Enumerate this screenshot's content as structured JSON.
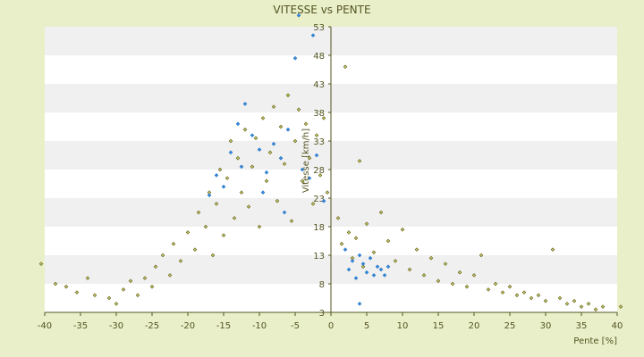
{
  "chart_data": {
    "type": "scatter",
    "title": "VITESSE vs PENTE",
    "xlabel": "Pente [%]",
    "ylabel": "Vitesse [km/h]",
    "xlim": [
      -40,
      40
    ],
    "ylim": [
      3,
      53
    ],
    "x_ticks": [
      "-40",
      "-35",
      "-30",
      "-25",
      "-20",
      "-15",
      "-10",
      "-5",
      "0",
      "5",
      "10",
      "15",
      "20",
      "25",
      "30",
      "35",
      "40"
    ],
    "y_ticks": [
      "3",
      "8",
      "13",
      "18",
      "23",
      "28",
      "33",
      "38",
      "43",
      "48",
      "53"
    ],
    "grid": "horizontal bands",
    "colors": {
      "background": "#e9efc9",
      "plot_band_light": "#ffffff",
      "plot_band_dark": "#f0f0f0",
      "marker_olive": "#c8c860",
      "marker_olive_edge": "#5a5a1a",
      "marker_blue": "#3a8fe0",
      "text": "#555522"
    },
    "series": [
      {
        "color": "#c8c860",
        "points": [
          [
            -40.5,
            11.5
          ],
          [
            -38.5,
            8.0
          ],
          [
            -37.0,
            7.5
          ],
          [
            -35.5,
            6.5
          ],
          [
            -34.0,
            9.0
          ],
          [
            -33.0,
            6.0
          ],
          [
            -31.0,
            5.5
          ],
          [
            -30.0,
            4.5
          ],
          [
            -29.0,
            7.0
          ],
          [
            -28.0,
            8.5
          ],
          [
            -27.0,
            6.0
          ],
          [
            -26.0,
            9.0
          ],
          [
            -25.0,
            7.5
          ],
          [
            -24.5,
            11.0
          ],
          [
            -23.5,
            13.0
          ],
          [
            -22.5,
            9.5
          ],
          [
            -22.0,
            15.0
          ],
          [
            -21.0,
            12.0
          ],
          [
            -20.0,
            17.0
          ],
          [
            -19.0,
            14.0
          ],
          [
            -18.5,
            20.5
          ],
          [
            -17.5,
            18.0
          ],
          [
            -17.0,
            24.0
          ],
          [
            -16.5,
            13.0
          ],
          [
            -16.0,
            22.0
          ],
          [
            -15.5,
            28.0
          ],
          [
            -15.0,
            16.5
          ],
          [
            -14.5,
            26.5
          ],
          [
            -14.0,
            33.0
          ],
          [
            -13.5,
            19.5
          ],
          [
            -13.0,
            30.0
          ],
          [
            -12.5,
            24.0
          ],
          [
            -12.0,
            35.0
          ],
          [
            -11.5,
            21.5
          ],
          [
            -11.0,
            28.5
          ],
          [
            -10.5,
            33.5
          ],
          [
            -10.0,
            18.0
          ],
          [
            -9.5,
            37.0
          ],
          [
            -9.0,
            26.0
          ],
          [
            -8.5,
            31.0
          ],
          [
            -8.0,
            39.0
          ],
          [
            -7.5,
            22.5
          ],
          [
            -7.0,
            35.5
          ],
          [
            -6.5,
            29.0
          ],
          [
            -6.0,
            41.0
          ],
          [
            -5.5,
            19.0
          ],
          [
            -5.0,
            33.0
          ],
          [
            -4.5,
            38.5
          ],
          [
            -4.0,
            26.0
          ],
          [
            -3.5,
            36.0
          ],
          [
            -3.0,
            30.0
          ],
          [
            -2.5,
            22.0
          ],
          [
            -2.0,
            34.0
          ],
          [
            -1.5,
            27.0
          ],
          [
            -1.0,
            37.0
          ],
          [
            -0.5,
            24.0
          ],
          [
            1.0,
            19.5
          ],
          [
            1.5,
            15.0
          ],
          [
            2.0,
            46.0
          ],
          [
            2.5,
            17.0
          ],
          [
            3.0,
            12.5
          ],
          [
            3.5,
            16.0
          ],
          [
            4.0,
            29.5
          ],
          [
            4.5,
            11.0
          ],
          [
            5.0,
            18.5
          ],
          [
            6.0,
            13.5
          ],
          [
            7.0,
            20.5
          ],
          [
            8.0,
            15.5
          ],
          [
            9.0,
            12.0
          ],
          [
            10.0,
            17.5
          ],
          [
            11.0,
            10.5
          ],
          [
            12.0,
            14.0
          ],
          [
            13.0,
            9.5
          ],
          [
            14.0,
            12.5
          ],
          [
            15.0,
            8.5
          ],
          [
            16.0,
            11.5
          ],
          [
            17.0,
            8.0
          ],
          [
            18.0,
            10.0
          ],
          [
            19.0,
            7.5
          ],
          [
            20.0,
            9.5
          ],
          [
            21.0,
            13.0
          ],
          [
            22.0,
            7.0
          ],
          [
            23.0,
            8.0
          ],
          [
            24.0,
            6.5
          ],
          [
            25.0,
            7.5
          ],
          [
            26.0,
            6.0
          ],
          [
            27.0,
            6.5
          ],
          [
            28.0,
            5.5
          ],
          [
            29.0,
            6.0
          ],
          [
            30.0,
            5.0
          ],
          [
            31.0,
            14.0
          ],
          [
            32.0,
            5.5
          ],
          [
            33.0,
            4.5
          ],
          [
            34.0,
            5.0
          ],
          [
            35.0,
            4.0
          ],
          [
            36.0,
            4.5
          ],
          [
            37.0,
            3.5
          ],
          [
            38.0,
            4.0
          ],
          [
            40.5,
            4.0
          ]
        ]
      },
      {
        "color": "#3a8fe0",
        "points": [
          [
            -17.0,
            23.5
          ],
          [
            -16.0,
            27.0
          ],
          [
            -15.0,
            25.0
          ],
          [
            -14.0,
            31.0
          ],
          [
            -13.0,
            36.0
          ],
          [
            -12.5,
            28.5
          ],
          [
            -12.0,
            39.5
          ],
          [
            -11.0,
            34.0
          ],
          [
            -10.0,
            31.5
          ],
          [
            -9.5,
            24.0
          ],
          [
            -9.0,
            27.5
          ],
          [
            -8.0,
            32.5
          ],
          [
            -7.0,
            30.0
          ],
          [
            -6.5,
            20.5
          ],
          [
            -6.0,
            35.0
          ],
          [
            -5.0,
            47.5
          ],
          [
            -4.5,
            55.0
          ],
          [
            -4.0,
            28.0
          ],
          [
            -3.0,
            26.5
          ],
          [
            -2.5,
            51.5
          ],
          [
            -2.0,
            30.5
          ],
          [
            -1.0,
            22.5
          ],
          [
            2.0,
            14.0
          ],
          [
            2.5,
            10.5
          ],
          [
            3.0,
            12.0
          ],
          [
            3.5,
            9.0
          ],
          [
            4.0,
            13.0
          ],
          [
            4.5,
            11.5
          ],
          [
            5.0,
            10.0
          ],
          [
            5.5,
            12.5
          ],
          [
            6.0,
            9.5
          ],
          [
            6.5,
            11.0
          ],
          [
            7.0,
            10.5
          ],
          [
            7.5,
            9.5
          ],
          [
            8.0,
            11.0
          ],
          [
            4.0,
            4.5
          ]
        ]
      }
    ]
  }
}
